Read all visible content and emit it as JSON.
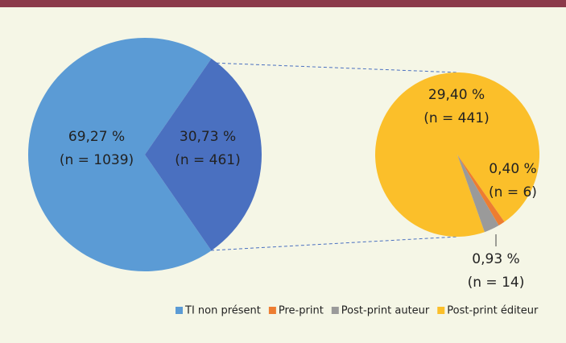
{
  "chart_data": {
    "type": "pie_of_pie",
    "main": {
      "categories": [
        "TI non présent",
        null
      ],
      "values": [
        69.27,
        30.73
      ],
      "value_labels": [
        "69,27 %",
        "30,73 %"
      ],
      "counts": [
        1039,
        461
      ],
      "count_labels": [
        "(n = 1039)",
        "(n = 461)"
      ],
      "colors": [
        "#5b9bd5",
        "#4a70c0"
      ]
    },
    "detail": {
      "categories": [
        "Post-print éditeur",
        "Pre-print",
        "Post-print auteur"
      ],
      "values": [
        29.4,
        0.4,
        0.93
      ],
      "value_labels": [
        "29,40 %",
        "0,40 %",
        "0,93 %"
      ],
      "counts": [
        441,
        6,
        14
      ],
      "count_labels": [
        "(n = 441)",
        "(n = 6)",
        "(n = 14)"
      ],
      "colors": [
        "#fbbf2a",
        "#ed7d31",
        "#9a9a9a"
      ]
    },
    "series": [
      {
        "name": "TI non présent",
        "color": "#5b9bd5"
      },
      {
        "name": "Pre-print",
        "color": "#ed7d31"
      },
      {
        "name": "Post-print auteur",
        "color": "#9a9a9a"
      },
      {
        "name": "Post-print éditeur",
        "color": "#fbbf2a"
      }
    ]
  }
}
